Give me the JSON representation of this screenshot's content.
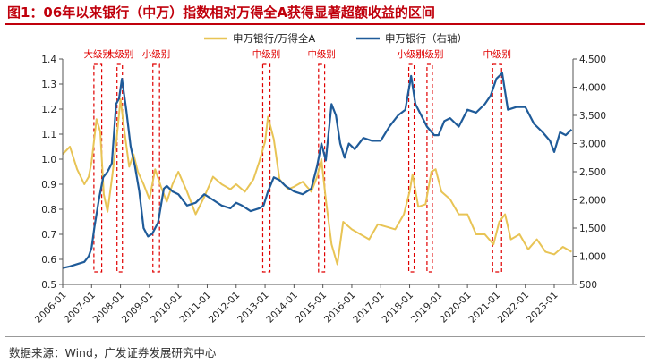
{
  "figure_title": "图1：06年以来银行（中万）指数相对万得全A获得显著超额收益的区间",
  "source_note": "数据来源：Wind，广发证券发展研究中心",
  "colors": {
    "ratio": "#e8c455",
    "bank": "#1f5b99",
    "box": "#e00000",
    "title": "#c0000c"
  },
  "chart_data": {
    "type": "line",
    "title": "",
    "legend_position": "top-center",
    "x_categories": [
      "2006-01",
      "2007-01",
      "2008-01",
      "2009-01",
      "2010-01",
      "2011-01",
      "2012-01",
      "2013-01",
      "2014-01",
      "2015-01",
      "2016-01",
      "2017-01",
      "2018-01",
      "2019-01",
      "2020-01",
      "2021-01",
      "2022-01",
      "2023-01"
    ],
    "left_axis": {
      "min": 0.5,
      "max": 1.4,
      "ticks": [
        "0.5",
        "0.6",
        "0.7",
        "0.8",
        "0.9",
        "1.0",
        "1.1",
        "1.2",
        "1.3",
        "1.4"
      ]
    },
    "right_axis": {
      "min": 500,
      "max": 4500,
      "ticks": [
        "500",
        "1,000",
        "1,500",
        "2,000",
        "2,500",
        "3,000",
        "3,500",
        "4,000",
        "4,500"
      ]
    },
    "series": [
      {
        "name": "申万银行/万得全A",
        "axis": "left",
        "x": [
          2006.0,
          2006.25,
          2006.5,
          2006.75,
          2006.9,
          2007.0,
          2007.08,
          2007.17,
          2007.3,
          2007.42,
          2007.55,
          2007.7,
          2007.85,
          2008.0,
          2008.15,
          2008.3,
          2008.45,
          2008.6,
          2008.8,
          2009.0,
          2009.2,
          2009.4,
          2009.6,
          2009.8,
          2010.0,
          2010.3,
          2010.6,
          2010.9,
          2011.2,
          2011.5,
          2011.8,
          2012.0,
          2012.3,
          2012.6,
          2012.8,
          2013.0,
          2013.1,
          2013.3,
          2013.5,
          2013.8,
          2014.0,
          2014.3,
          2014.6,
          2014.8,
          2014.95,
          2015.1,
          2015.3,
          2015.5,
          2015.7,
          2016.0,
          2016.3,
          2016.6,
          2016.9,
          2017.2,
          2017.5,
          2017.8,
          2018.0,
          2018.1,
          2018.3,
          2018.55,
          2018.75,
          2018.9,
          2019.1,
          2019.4,
          2019.7,
          2020.0,
          2020.3,
          2020.6,
          2020.9,
          2021.1,
          2021.3,
          2021.5,
          2021.8,
          2022.1,
          2022.4,
          2022.7,
          2023.0,
          2023.3,
          2023.6
        ],
        "y": [
          1.02,
          1.05,
          0.96,
          0.9,
          0.93,
          0.99,
          1.07,
          1.16,
          1.11,
          0.86,
          0.79,
          0.92,
          1.06,
          1.24,
          1.1,
          0.97,
          1.02,
          0.95,
          0.9,
          0.84,
          0.96,
          0.89,
          0.83,
          0.9,
          0.95,
          0.87,
          0.78,
          0.85,
          0.93,
          0.9,
          0.88,
          0.9,
          0.87,
          0.92,
          0.99,
          1.07,
          1.17,
          1.08,
          0.92,
          0.88,
          0.89,
          0.91,
          0.87,
          0.93,
          1.0,
          0.84,
          0.66,
          0.58,
          0.75,
          0.72,
          0.7,
          0.68,
          0.74,
          0.73,
          0.72,
          0.78,
          0.87,
          0.94,
          0.81,
          0.82,
          0.95,
          0.96,
          0.87,
          0.84,
          0.78,
          0.78,
          0.7,
          0.7,
          0.66,
          0.75,
          0.78,
          0.68,
          0.7,
          0.64,
          0.68,
          0.63,
          0.62,
          0.65,
          0.63
        ]
      },
      {
        "name": "申万银行（右轴）",
        "axis": "right",
        "x": [
          2006.0,
          2006.25,
          2006.5,
          2006.75,
          2006.9,
          2007.0,
          2007.1,
          2007.25,
          2007.4,
          2007.55,
          2007.7,
          2007.85,
          2007.95,
          2008.05,
          2008.2,
          2008.35,
          2008.5,
          2008.65,
          2008.8,
          2008.95,
          2009.1,
          2009.3,
          2009.5,
          2009.6,
          2009.8,
          2010.0,
          2010.3,
          2010.6,
          2010.9,
          2011.2,
          2011.5,
          2011.8,
          2012.0,
          2012.2,
          2012.5,
          2012.8,
          2012.95,
          2013.1,
          2013.3,
          2013.5,
          2013.7,
          2014.0,
          2014.3,
          2014.6,
          2014.8,
          2014.95,
          2015.1,
          2015.3,
          2015.45,
          2015.6,
          2015.75,
          2015.9,
          2016.1,
          2016.4,
          2016.7,
          2017.0,
          2017.3,
          2017.6,
          2017.85,
          2018.05,
          2018.2,
          2018.4,
          2018.6,
          2018.85,
          2019.0,
          2019.2,
          2019.4,
          2019.7,
          2020.0,
          2020.3,
          2020.6,
          2020.8,
          2021.0,
          2021.2,
          2021.4,
          2021.7,
          2022.0,
          2022.3,
          2022.6,
          2022.85,
          2023.0,
          2023.2,
          2023.4,
          2023.6
        ],
        "y": [
          790,
          820,
          860,
          900,
          1000,
          1150,
          1520,
          2000,
          2400,
          2500,
          2650,
          3700,
          3800,
          4150,
          3600,
          2950,
          2600,
          2150,
          1500,
          1350,
          1400,
          1600,
          2200,
          2250,
          2150,
          2100,
          1900,
          1950,
          2100,
          2000,
          1900,
          1850,
          1950,
          1900,
          1800,
          1850,
          1900,
          2150,
          2400,
          2350,
          2250,
          2150,
          2100,
          2200,
          2600,
          3000,
          2700,
          3700,
          3500,
          3000,
          2750,
          3000,
          2900,
          3100,
          3050,
          3050,
          3300,
          3500,
          3600,
          4200,
          3700,
          3500,
          3300,
          3150,
          3150,
          3400,
          3450,
          3300,
          3600,
          3550,
          3700,
          3850,
          4150,
          4250,
          3600,
          3650,
          3650,
          3350,
          3200,
          3050,
          2850,
          3200,
          3150,
          3250
        ]
      }
    ],
    "highlight_periods": [
      {
        "label": "大级别",
        "start": 2007.08,
        "end": 2007.35
      },
      {
        "label": "大级别",
        "start": 2007.88,
        "end": 2008.06
      },
      {
        "label": "小级别",
        "start": 2009.12,
        "end": 2009.35
      },
      {
        "label": "中级别",
        "start": 2012.92,
        "end": 2013.17
      },
      {
        "label": "中级别",
        "start": 2014.85,
        "end": 2015.06
      },
      {
        "label": "小级别",
        "start": 2017.97,
        "end": 2018.13
      },
      {
        "label": "小级别",
        "start": 2018.6,
        "end": 2018.78
      },
      {
        "label": "中级别",
        "start": 2020.87,
        "end": 2021.18
      }
    ]
  }
}
